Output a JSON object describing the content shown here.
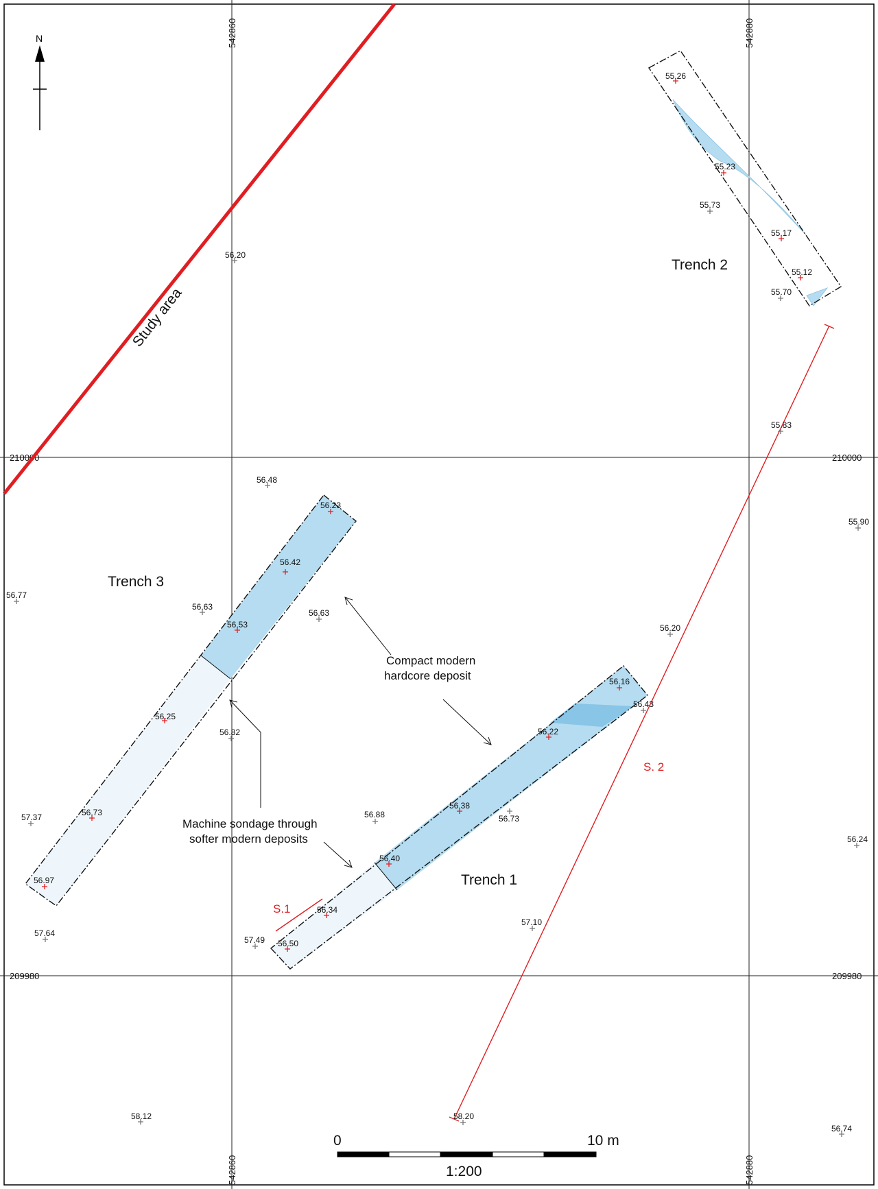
{
  "north": {
    "label": "N"
  },
  "grid": {
    "easting_left": "542860",
    "easting_right": "542880",
    "northing_top": "210000",
    "northing_bottom": "209980"
  },
  "labels": {
    "study_area": "Study area",
    "trench1": "Trench 1",
    "trench2": "Trench 2",
    "trench3": "Trench 3",
    "s1": "S.1",
    "s2": "S. 2"
  },
  "annotations": {
    "hardcore_line1": "Compact modern",
    "hardcore_line2": "hardcore deposit",
    "sondage_line1": "Machine sondage through",
    "sondage_line2": "softer modern deposits"
  },
  "scale_bar": {
    "start": "0",
    "end": "10 m",
    "ratio": "1:200"
  },
  "levels_trench": [
    "55.26",
    "55.23",
    "55.17",
    "55.12",
    "56.23",
    "56.42",
    "56.53",
    "56.25",
    "56.73",
    "56.97",
    "56.16",
    "56.22",
    "56.38",
    "56.40",
    "56.34",
    "56.50"
  ],
  "levels_ground": [
    "56.20",
    "55.73",
    "55.70",
    "55.83",
    "56.48",
    "55.90",
    "56.77",
    "56.63",
    "56.63",
    "56.20",
    "56.43",
    "56.82",
    "57.37",
    "56.88",
    "56.73",
    "56.24",
    "57.64",
    "57.10",
    "57.49",
    "58.12",
    "58.20",
    "56.74"
  ],
  "colors": {
    "study_area_line": "#e01e22",
    "section_line": "#e01e22",
    "hardcore_fill": "#b5dcf0",
    "sondage_fill": "#eef6fb",
    "dark_fill": "#7dbfe3"
  }
}
